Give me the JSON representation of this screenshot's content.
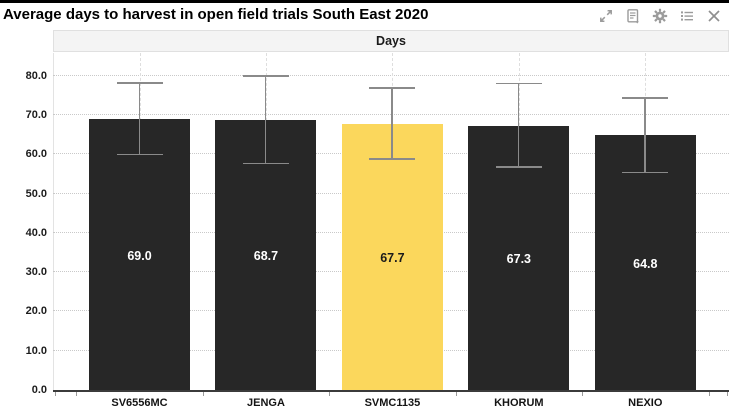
{
  "window": {
    "title": "Average days to harvest in open field trials South East 2020",
    "toolbar": {
      "icons": [
        "expand-icon",
        "report-icon",
        "settings-icon",
        "list-icon",
        "close-icon"
      ],
      "icon_color": "#9b9b9b"
    }
  },
  "chart_data": {
    "type": "bar",
    "title": "Days",
    "categories": [
      "SV6556MC",
      "JENGA",
      "SVMC1135",
      "KHORUM",
      "NEXIO"
    ],
    "values": [
      69.0,
      68.7,
      67.7,
      67.3,
      64.8
    ],
    "value_labels": [
      "69.0",
      "68.7",
      "67.7",
      "67.3",
      "64.8"
    ],
    "error_high": [
      78.0,
      79.8,
      76.7,
      77.9,
      74.1
    ],
    "error_low": [
      59.8,
      57.5,
      58.6,
      56.6,
      55.2
    ],
    "highlight_index": 2,
    "bar_color": "#272727",
    "highlight_color": "#fbd75c",
    "value_text_color": "#ffffff",
    "value_text_color_on_highlight": "#1a1a1a",
    "error_bar_color": "#8a8a8a",
    "ylim": [
      0,
      85.8
    ],
    "yticks": [
      "0.0",
      "10.0",
      "20.0",
      "30.0",
      "40.0",
      "50.0",
      "60.0",
      "70.0",
      "80.0"
    ],
    "grid": "horizontal-dotted, vertical-dashed-at-category-centers",
    "legend_position": "top-banner",
    "xlabel": "",
    "ylabel": ""
  }
}
